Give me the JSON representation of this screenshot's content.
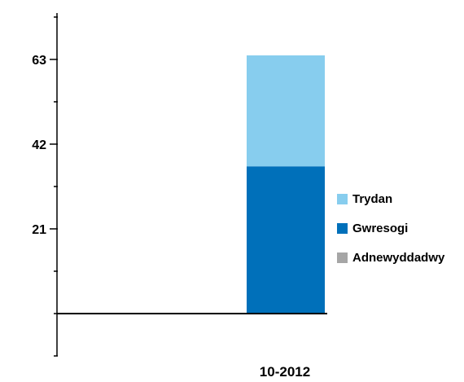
{
  "chart_data": {
    "type": "bar",
    "stacked": true,
    "categories": [
      "10-2012"
    ],
    "series": [
      {
        "name": "Adnewyddadwy",
        "values": [
          0
        ],
        "color": "#a6a6a6"
      },
      {
        "name": "Gwresogi",
        "values": [
          36.5
        ],
        "color": "#0070ba"
      },
      {
        "name": "Trydan",
        "values": [
          27.5
        ],
        "color": "#87cdee"
      }
    ],
    "legend_order": [
      "Trydan",
      "Gwresogi",
      "Adnewyddadwy"
    ],
    "yticks": [
      21,
      42,
      63
    ],
    "ylim": [
      -10.5,
      74.5
    ],
    "legend_position": "right",
    "grid": false
  }
}
